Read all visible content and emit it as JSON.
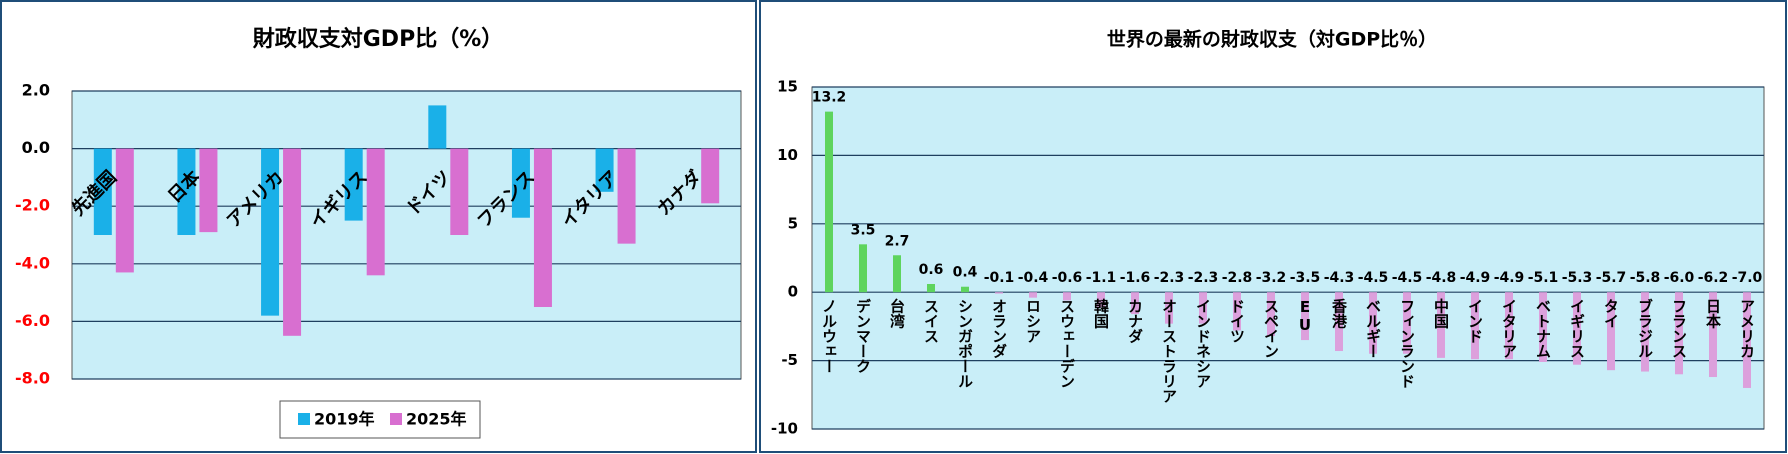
{
  "chart_data": [
    {
      "type": "bar",
      "title": "財政収支対GDP比（%）",
      "categories": [
        "先進国",
        "日本",
        "アメリカ",
        "イギリス",
        "ドイツ",
        "フランス",
        "イタリア",
        "カナダ"
      ],
      "series": [
        {
          "name": "2019年",
          "color": "#1ab0e8",
          "values": [
            -3.0,
            -3.0,
            -5.8,
            -2.5,
            1.5,
            -2.4,
            -1.5,
            null
          ]
        },
        {
          "name": "2025年",
          "color": "#d86fd0",
          "values": [
            -4.3,
            -2.9,
            -6.5,
            -4.4,
            -3.0,
            -5.5,
            -3.3,
            -1.9
          ]
        }
      ],
      "ylim": [
        -8,
        2
      ],
      "yticks": [
        {
          "value": -8,
          "label": "-8.0"
        },
        {
          "value": -6,
          "label": "-6.0"
        },
        {
          "value": -4,
          "label": "-4.0"
        },
        {
          "value": -2,
          "label": "-2.0"
        },
        {
          "value": 0,
          "label": "0.0"
        },
        {
          "value": 2,
          "label": "2.0"
        }
      ],
      "negative_tick_color": "#ff0000",
      "grid": true,
      "legend": "bottom"
    },
    {
      "type": "bar",
      "title": "世界の最新の財政収支（対GDP比％）",
      "categories": [
        "ノルウェー",
        "デンマーク",
        "台湾",
        "スイス",
        "シンガポール",
        "オランダ",
        "ロシア",
        "スウェーデン",
        "韓国",
        "カナダ",
        "オーストラリア",
        "インドネシア",
        "ドイツ",
        "スペイン",
        "EU",
        "香港",
        "ベルギー",
        "フィンランド",
        "中国",
        "インド",
        "イタリア",
        "ベトナム",
        "イギリス",
        "タイ",
        "ブラジル",
        "フランス",
        "日本",
        "アメリカ"
      ],
      "values": [
        13.2,
        3.5,
        2.7,
        0.6,
        0.4,
        -0.1,
        -0.4,
        -0.6,
        -1.1,
        -1.6,
        -2.3,
        -2.3,
        -2.8,
        -3.2,
        -3.5,
        -4.3,
        -4.5,
        -4.5,
        -4.8,
        -4.9,
        -4.9,
        -5.1,
        -5.3,
        -5.7,
        -5.8,
        -6.0,
        -6.2,
        -7.0
      ],
      "value_labels": [
        "13.2",
        "3.5",
        "2.7",
        "0.6",
        "0.4",
        "-0.1",
        "-0.4",
        "-0.6",
        "-1.1",
        "-1.6",
        "-2.3",
        "-2.3",
        "-2.8",
        "-3.2",
        "-3.5",
        "-4.3",
        "-4.5",
        "-4.5",
        "-4.8",
        "-4.9",
        "-4.9",
        "-5.1",
        "-5.3",
        "-5.7",
        "-5.8",
        "-6.0",
        "-6.2",
        "-7.0"
      ],
      "positive_color": "#5ed45e",
      "negative_color": "#dca0dc",
      "ylim": [
        -10,
        15
      ],
      "yticks": [
        -10,
        -5,
        0,
        5,
        10,
        15
      ],
      "grid": true
    }
  ]
}
